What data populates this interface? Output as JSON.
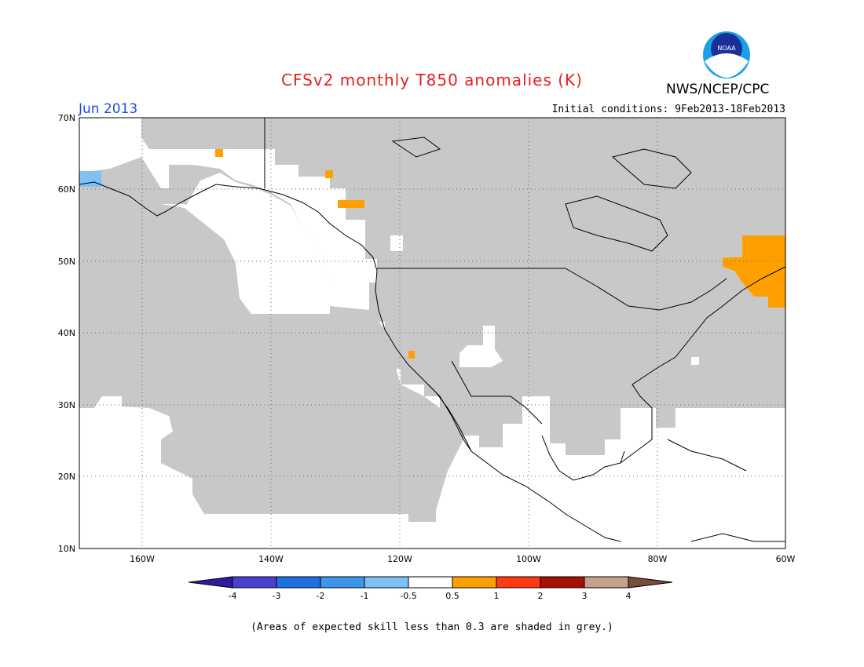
{
  "title": "CFSv2 monthly T850 anomalies (K)",
  "agency": "NWS/NCEP/CPC",
  "logo_text": "NOAA",
  "month": "Jun 2013",
  "initial_conditions": "Initial conditions: 9Feb2013-18Feb2013",
  "footnote": "(Areas of expected skill less than 0.3 are shaded in grey.)",
  "lat_labels": [
    "70N",
    "60N",
    "50N",
    "40N",
    "30N",
    "20N",
    "10N"
  ],
  "lon_labels": [
    "160W",
    "140W",
    "120W",
    "100W",
    "80W",
    "60W"
  ],
  "colorbar": {
    "labels": [
      "-4",
      "-3",
      "-2",
      "-1",
      "-0.5",
      "0.5",
      "1",
      "2",
      "3",
      "4"
    ],
    "colors": [
      "#2e1ba0",
      "#4a3fd0",
      "#1e6fe0",
      "#3d96ec",
      "#7fc0f5",
      "#ffffff",
      "#ffa000",
      "#ff3a10",
      "#a81000",
      "#c8a090",
      "#7a4a3a"
    ]
  },
  "colors": {
    "skill_grey": "#c8c8c8",
    "title_red": "#e8201c",
    "month_blue": "#1c4fd8"
  }
}
